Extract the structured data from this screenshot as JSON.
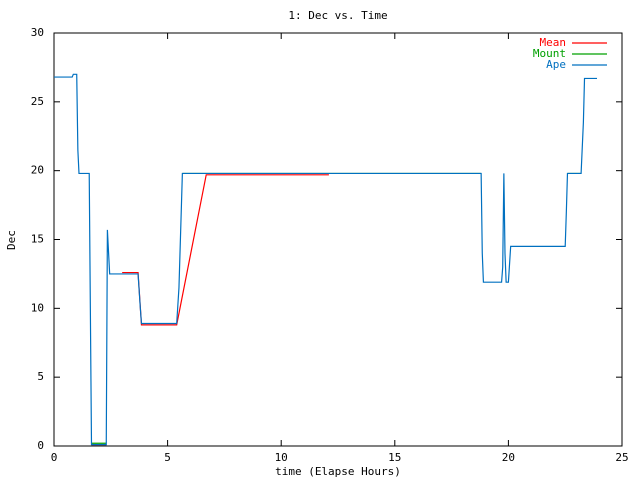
{
  "chart_data": {
    "type": "line",
    "title": "1: Dec vs. Time",
    "x_label": "time (Elapse Hours)",
    "y_label": "Dec",
    "xlim": [
      0,
      25
    ],
    "xticks": [
      0,
      5,
      10,
      15,
      20,
      25
    ],
    "ylim": [
      0,
      30
    ],
    "yticks": [
      0,
      5,
      10,
      15,
      20,
      25,
      30
    ],
    "legend": "top-right",
    "series": [
      {
        "name": "Mean",
        "color": "#ff0000",
        "x": [
          1.65,
          2.3,
          3.0,
          3.0,
          3.7,
          3.85,
          5.4,
          6.7,
          12.1
        ],
        "values": [
          0.1,
          0.1,
          null,
          12.6,
          12.6,
          8.8,
          8.8,
          19.7,
          19.7
        ]
      },
      {
        "name": "Mount",
        "color": "#00a000",
        "x": [
          1.65,
          2.3,
          5.65,
          5.65,
          18.8,
          22.6,
          22.6,
          23.2
        ],
        "values": [
          0.2,
          0.2,
          null,
          19.8,
          19.8,
          null,
          19.8,
          19.8
        ]
      },
      {
        "name": "Ape",
        "color": "#0070c0",
        "x": [
          0,
          0.8,
          0.85,
          1.0,
          1.05,
          1.1,
          1.55,
          1.6,
          1.65,
          2.3,
          2.35,
          2.45,
          3.7,
          3.8,
          3.85,
          5.4,
          5.5,
          5.6,
          5.65,
          18.8,
          18.85,
          18.9,
          19.7,
          19.75,
          19.8,
          19.85,
          19.9,
          20.0,
          20.1,
          22.5,
          22.55,
          22.6,
          23.2,
          23.3,
          23.35,
          23.9
        ],
        "values": [
          26.8,
          26.8,
          27.0,
          27.0,
          21.5,
          19.8,
          19.8,
          10,
          0.1,
          0.1,
          15.7,
          12.5,
          12.5,
          10,
          8.9,
          8.9,
          11.5,
          17,
          19.8,
          19.8,
          14,
          11.9,
          11.9,
          13,
          19.8,
          14,
          11.9,
          11.9,
          14.5,
          14.5,
          17,
          19.8,
          19.8,
          23.5,
          26.7,
          26.7
        ]
      }
    ]
  }
}
